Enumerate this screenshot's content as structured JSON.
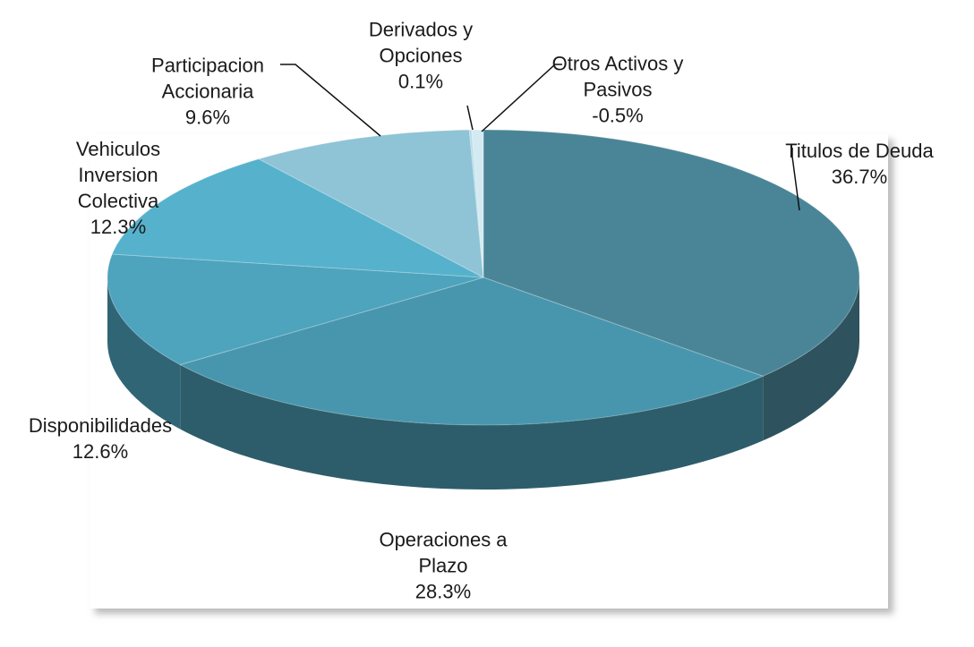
{
  "chart_data": {
    "type": "pie3d",
    "categories": [
      "Titulos de Deuda",
      "Operaciones a Plazo",
      "Disponibilidades",
      "Vehiculos Inversion Colectiva",
      "Participacion Accionaria",
      "Derivados y Opciones",
      "Otros Activos y Pasivos"
    ],
    "values": [
      36.7,
      28.3,
      12.6,
      12.3,
      9.6,
      0.1,
      -0.5
    ],
    "value_labels": [
      "36.7%",
      "28.3%",
      "12.6%",
      "12.3%",
      "9.6%",
      "0.1%",
      "-0.5%"
    ],
    "colors": [
      "#4a8597",
      "#4896ad",
      "#4ea3bd",
      "#56b2cc",
      "#8fc3d6",
      "#b8dce8",
      "#d4eaf2"
    ]
  }
}
